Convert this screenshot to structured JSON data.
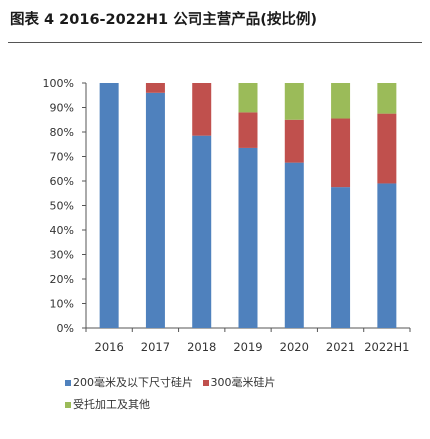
{
  "title": "图表 4 2016-2022H1 公司主营产品(按比例)",
  "chart_data": {
    "type": "bar",
    "stacked": true,
    "categories": [
      "2016",
      "2017",
      "2018",
      "2019",
      "2020",
      "2021",
      "2022H1"
    ],
    "series": [
      {
        "name": "200毫米及以下尺寸硅片",
        "color": "#4f81bd",
        "values": [
          100,
          96,
          78.5,
          73.5,
          67.5,
          57.5,
          59
        ]
      },
      {
        "name": "300毫米硅片",
        "color": "#c0504d",
        "values": [
          0,
          4,
          21.5,
          14.5,
          17.5,
          28,
          28.5
        ]
      },
      {
        "name": "受托加工及其他",
        "color": "#9bbb59",
        "values": [
          0,
          0,
          0,
          12,
          15,
          14.5,
          12.5
        ]
      }
    ],
    "ylim": [
      0,
      100
    ],
    "yticks": [
      "0%",
      "10%",
      "20%",
      "30%",
      "40%",
      "50%",
      "60%",
      "70%",
      "80%",
      "90%",
      "100%"
    ],
    "grid": false,
    "legend_position": "bottom"
  }
}
